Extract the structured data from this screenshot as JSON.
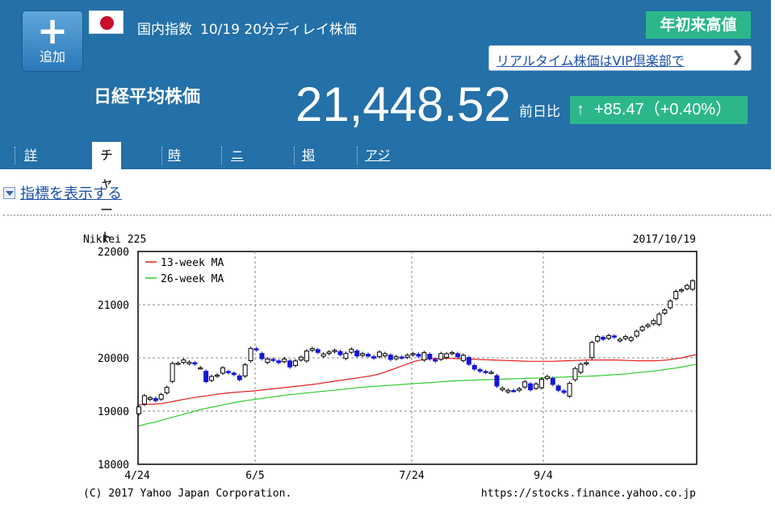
{
  "header": {
    "add_label": "追加",
    "category": "国内指数",
    "title": "10/19 20分ディレイ株価",
    "ytd_badge": "年初来高値",
    "vip_link": "リアルタイム株価はVIP倶楽部で",
    "index_name": "日経平均株価",
    "price": "21,448.52",
    "prev_label": "前日比",
    "change": "+85.47（+0.40%）",
    "colors": {
      "bg": "#2470a8",
      "badge": "#2cb78b"
    }
  },
  "tabs": [
    {
      "label": "詳細情報",
      "active": false
    },
    {
      "label": "チャート",
      "active": true
    },
    {
      "label": "時系列",
      "active": false
    },
    {
      "label": "ニュース",
      "active": false
    },
    {
      "label": "掲示板",
      "active": false
    },
    {
      "label": "アジア・オセアニアの指数",
      "active": false
    }
  ],
  "indicator_toggle": "指標を表示する",
  "chart_data": {
    "type": "candlestick",
    "title": "Nikkei 225",
    "date": "2017/10/19",
    "legend": [
      "13-week MA",
      "26-week MA"
    ],
    "ylim": [
      18000,
      22000
    ],
    "yticks": [
      "22000",
      "21000",
      "20000",
      "19000",
      "18000"
    ],
    "xticks": [
      "4/24",
      "6/5",
      "7/24",
      "9/4"
    ],
    "credit": "(C) 2017 Yahoo Japan Corporation.",
    "url": "https://stocks.finance.yahoo.co.jp",
    "closes": [
      19079,
      19289,
      19251,
      19196,
      19310,
      19445,
      19895,
      19900,
      19961,
      19919,
      19884,
      19814,
      19553,
      19650,
      19678,
      19814,
      19723,
      19686,
      19590,
      19870,
      20177,
      20152,
      19985,
      19979,
      19955,
      19911,
      19980,
      19830,
      19943,
      20013,
      20130,
      20174,
      20102,
      20072,
      20111,
      20141,
      20060,
      20085,
      20163,
      20036,
      20080,
      20032,
      19995,
      20109,
      20080,
      19970,
      20022,
      19999,
      20050,
      20080,
      20031,
      20098,
      19980,
      19940,
      20080,
      20077,
      20100,
      20020,
      20050,
      19880,
      19790,
      19750,
      19729,
      19730,
      19470,
      19430,
      19390,
      19380,
      19420,
      19550,
      19400,
      19510,
      19600,
      19650,
      19500,
      19390,
      19350,
      19520,
      19800,
      19880,
      19910,
      20290,
      20400,
      20350,
      20420,
      20390,
      20350,
      20400,
      20380,
      20500,
      20580,
      20620,
      20700,
      20820,
      20900,
      21070,
      21250,
      21280,
      21360,
      21448
    ],
    "ma13": [
      19120,
      19125,
      19130,
      19140,
      19160,
      19190,
      19215,
      19240,
      19262,
      19280,
      19300,
      19320,
      19335,
      19350,
      19360,
      19370,
      19380,
      19395,
      19410,
      19425,
      19440,
      19455,
      19470,
      19485,
      19500,
      19520,
      19540,
      19560,
      19580,
      19600,
      19620,
      19640,
      19660,
      19690,
      19730,
      19780,
      19830,
      19880,
      19930,
      19960,
      19980,
      19990,
      19990,
      19990,
      19985,
      19980,
      19975,
      19970,
      19965,
      19960,
      19955,
      19950,
      19945,
      19940,
      19935,
      19935,
      19935,
      19935,
      19940,
      19945,
      19950,
      19955,
      19960,
      19960,
      19960,
      19960,
      19960,
      19955,
      19950,
      19945,
      19945,
      19945,
      19950,
      19960,
      19980,
      20000,
      20030,
      20060
    ],
    "ma26": [
      18720,
      18760,
      18790,
      18830,
      18870,
      18910,
      18950,
      18990,
      19030,
      19060,
      19090,
      19120,
      19150,
      19175,
      19200,
      19220,
      19240,
      19260,
      19280,
      19300,
      19315,
      19330,
      19345,
      19360,
      19375,
      19390,
      19405,
      19420,
      19435,
      19450,
      19460,
      19470,
      19480,
      19490,
      19500,
      19510,
      19520,
      19530,
      19540,
      19550,
      19560,
      19570,
      19575,
      19580,
      19585,
      19590,
      19595,
      19600,
      19605,
      19610,
      19615,
      19620,
      19625,
      19630,
      19635,
      19640,
      19645,
      19650,
      19655,
      19660,
      19670,
      19680,
      19690,
      19700,
      19715,
      19730,
      19745,
      19760,
      19780,
      19800,
      19825,
      19850,
      19880
    ]
  }
}
